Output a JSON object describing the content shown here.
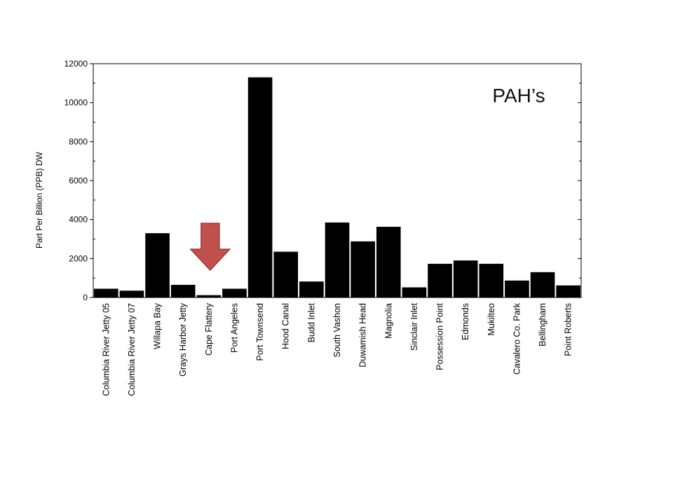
{
  "chart_data": {
    "type": "bar",
    "title": "PAH’s",
    "xlabel": "",
    "ylabel": "Part Per Billion (PPB) DW",
    "ylim": [
      0,
      12000
    ],
    "yticks": [
      0,
      2000,
      4000,
      6000,
      8000,
      10000,
      12000
    ],
    "grid": false,
    "categories": [
      "Columbia River Jetty 05",
      "Columbia River Jetty 07",
      "Willapa Bay",
      "Grays Harbor Jetty",
      "Cape Flattery",
      "Port Angeles",
      "Port Townsend",
      "Hood Canal",
      "Budd Inlet",
      "South Vashon",
      "Duwamish Head",
      "Magnolia",
      "Sinclair Inlet",
      "Possession Point",
      "Edmonds",
      "Mukilteo",
      "Cavalero Co. Park",
      "Bellingham",
      "Point Roberts"
    ],
    "values": [
      450,
      350,
      3300,
      650,
      120,
      450,
      11300,
      2350,
      820,
      3850,
      2880,
      3630,
      520,
      1730,
      1900,
      1730,
      870,
      1300,
      620
    ],
    "bar_color": "#000000",
    "annotation": {
      "type": "arrow",
      "direction": "down",
      "target_category": "Cape Flattery",
      "color": "#c0504d",
      "edge_color": "#a03a37"
    }
  }
}
